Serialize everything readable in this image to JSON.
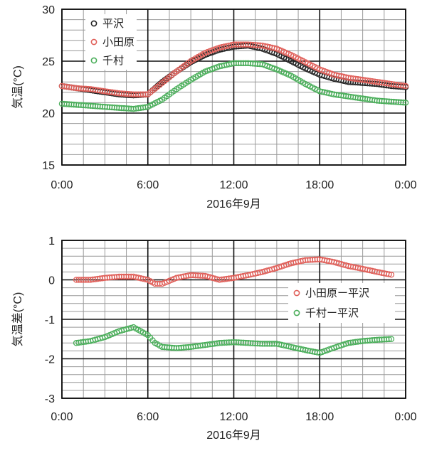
{
  "chart_data": [
    {
      "type": "scatter",
      "xlabel": "2016年9月",
      "ylabel": "気温(°C)",
      "xlim": [
        0,
        24
      ],
      "ylim": [
        15,
        30
      ],
      "x_ticks": [
        {
          "value": 0,
          "label": "0:00"
        },
        {
          "value": 6,
          "label": "6:00"
        },
        {
          "value": 12,
          "label": "12:00"
        },
        {
          "value": 18,
          "label": "18:00"
        },
        {
          "value": 24,
          "label": "0:00"
        }
      ],
      "y_ticks": [
        15,
        20,
        25,
        30
      ],
      "grid": true,
      "legend": "top-left",
      "series": [
        {
          "name": "平沢",
          "color": "#222222",
          "marker": "open-circle",
          "x": [
            0,
            1,
            2,
            3,
            4,
            5,
            6,
            7,
            8,
            9,
            10,
            11,
            12,
            13,
            14,
            15,
            16,
            17,
            18,
            19,
            20,
            21,
            22,
            23,
            24
          ],
          "y": [
            22.6,
            22.4,
            22.2,
            22.0,
            21.8,
            21.7,
            21.8,
            23.0,
            24.0,
            24.9,
            25.6,
            26.1,
            26.4,
            26.5,
            26.2,
            25.7,
            25.0,
            24.3,
            23.7,
            23.3,
            23.0,
            22.9,
            22.8,
            22.6,
            22.5
          ]
        },
        {
          "name": "小田原",
          "color": "#e0605a",
          "marker": "open-circle",
          "x": [
            0,
            1,
            2,
            3,
            4,
            5,
            6,
            7,
            8,
            9,
            10,
            11,
            12,
            13,
            14,
            15,
            16,
            17,
            18,
            19,
            20,
            21,
            22,
            23,
            24
          ],
          "y": [
            22.6,
            22.4,
            22.3,
            22.1,
            21.9,
            21.8,
            21.8,
            22.9,
            24.0,
            25.0,
            25.8,
            26.3,
            26.6,
            26.6,
            26.5,
            26.2,
            25.6,
            24.9,
            24.2,
            23.7,
            23.4,
            23.2,
            23.0,
            22.8,
            22.6
          ]
        },
        {
          "name": "千村",
          "color": "#4aae5a",
          "marker": "open-circle",
          "x": [
            0,
            1,
            2,
            3,
            4,
            5,
            6,
            7,
            8,
            9,
            10,
            11,
            12,
            13,
            14,
            15,
            16,
            17,
            18,
            19,
            20,
            21,
            22,
            23,
            24
          ],
          "y": [
            20.9,
            20.8,
            20.7,
            20.6,
            20.5,
            20.4,
            20.6,
            21.3,
            22.3,
            23.2,
            24.0,
            24.5,
            24.8,
            24.8,
            24.7,
            24.2,
            23.6,
            22.8,
            22.1,
            21.8,
            21.6,
            21.4,
            21.2,
            21.1,
            21.0
          ]
        }
      ]
    },
    {
      "type": "scatter",
      "xlabel": "2016年9月",
      "ylabel": "気温差(°C)",
      "xlim": [
        0,
        24
      ],
      "ylim": [
        -3,
        1
      ],
      "x_ticks": [
        {
          "value": 0,
          "label": "0:00"
        },
        {
          "value": 6,
          "label": "6:00"
        },
        {
          "value": 12,
          "label": "12:00"
        },
        {
          "value": 18,
          "label": "18:00"
        },
        {
          "value": 24,
          "label": "0:00"
        }
      ],
      "y_ticks": [
        -3,
        -2,
        -1,
        0,
        1
      ],
      "grid": true,
      "legend": "right",
      "series": [
        {
          "name": "小田原ー平沢",
          "color": "#e0605a",
          "marker": "open-circle",
          "x": [
            1,
            2,
            3,
            4,
            5,
            6,
            6.5,
            7,
            8,
            9,
            10,
            11,
            12,
            13,
            14,
            15,
            16,
            17,
            18,
            19,
            20,
            21,
            22,
            23
          ],
          "y": [
            0.0,
            0.0,
            0.05,
            0.08,
            0.08,
            0.0,
            -0.1,
            -0.1,
            0.05,
            0.12,
            0.1,
            0.0,
            0.05,
            0.12,
            0.2,
            0.3,
            0.42,
            0.5,
            0.52,
            0.45,
            0.35,
            0.28,
            0.2,
            0.13
          ]
        },
        {
          "name": "千村ー平沢",
          "color": "#4aae5a",
          "marker": "open-circle",
          "x": [
            1,
            2,
            3,
            4,
            5,
            6,
            6.5,
            7,
            8,
            9,
            10,
            11,
            12,
            13,
            14,
            15,
            16,
            17,
            18,
            19,
            20,
            21,
            22,
            23
          ],
          "y": [
            -1.6,
            -1.55,
            -1.45,
            -1.3,
            -1.2,
            -1.4,
            -1.6,
            -1.7,
            -1.73,
            -1.7,
            -1.65,
            -1.6,
            -1.58,
            -1.6,
            -1.62,
            -1.62,
            -1.7,
            -1.78,
            -1.85,
            -1.72,
            -1.6,
            -1.55,
            -1.52,
            -1.5
          ]
        }
      ]
    }
  ]
}
